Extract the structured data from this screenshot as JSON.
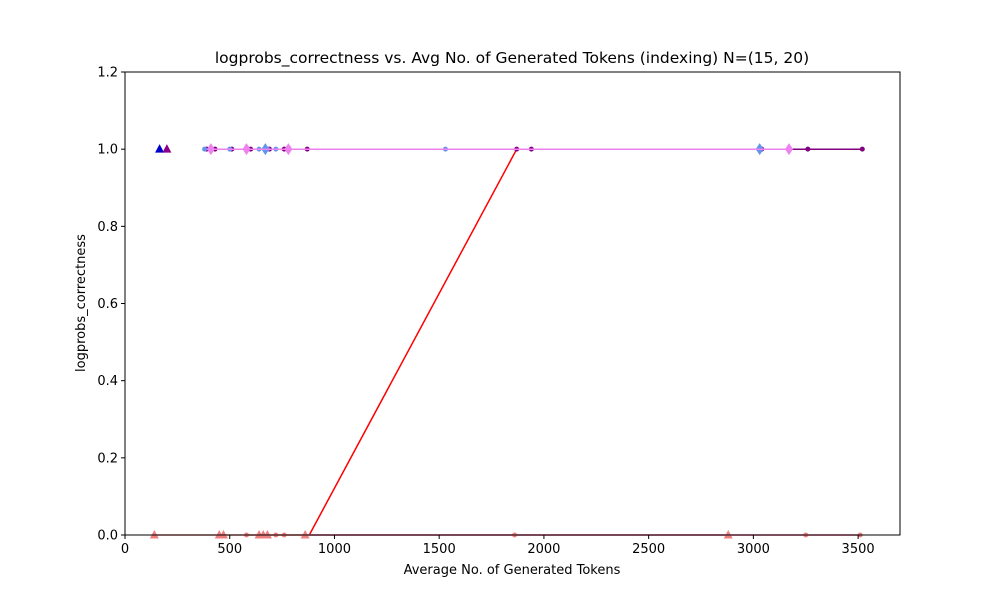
{
  "chart_data": {
    "type": "line",
    "title": "logprobs_correctness vs. Avg No. of Generated Tokens (indexing) N=(15, 20)",
    "xlabel": "Average No. of Generated Tokens",
    "ylabel": "logprobs_correctness",
    "xlim": [
      0,
      3700
    ],
    "ylim": [
      0,
      1.2
    ],
    "xticks": [
      0,
      500,
      1000,
      1500,
      2000,
      2500,
      3000,
      3500
    ],
    "yticks": [
      0.0,
      0.2,
      0.4,
      0.6,
      0.8,
      1.0,
      1.2
    ],
    "xtick_labels": [
      "0",
      "500",
      "1000",
      "1500",
      "2000",
      "2500",
      "3000",
      "3500"
    ],
    "ytick_labels": [
      "0.0",
      "0.2",
      "0.4",
      "0.6",
      "0.8",
      "1.0",
      "1.2"
    ],
    "grid": false,
    "legend": "none",
    "series": [
      {
        "color": "#ff0000",
        "marker": "line",
        "x": [
          880,
          1870
        ],
        "y": [
          0,
          1
        ]
      },
      {
        "color": "#800080",
        "marker": "circle",
        "x": [
          390,
          430,
          510,
          600,
          690,
          760,
          870,
          1870,
          1940,
          3040,
          3260,
          3520
        ],
        "y": [
          1,
          1,
          1,
          1,
          1,
          1,
          1,
          1,
          1,
          1,
          1,
          1
        ]
      },
      {
        "color": "#6495ed",
        "marker": "circle",
        "x": [
          380,
          500,
          580,
          640,
          680,
          720,
          780,
          1530
        ],
        "y": [
          1,
          1,
          1,
          1,
          1,
          1,
          1,
          1
        ]
      },
      {
        "color": "#6495ed",
        "marker": "diamond",
        "x": [
          670,
          3030
        ],
        "y": [
          1,
          1
        ]
      },
      {
        "color": "#ee82ee",
        "marker": "diamond",
        "x": [
          410,
          580,
          780,
          3170
        ],
        "y": [
          1,
          1,
          1,
          1
        ]
      },
      {
        "color": "#0000cd",
        "marker": "triangle",
        "x": [
          165
        ],
        "y": [
          1
        ]
      },
      {
        "color": "#8b008b",
        "marker": "triangle",
        "x": [
          200
        ],
        "y": [
          1
        ]
      },
      {
        "color": "#f08080",
        "marker": "triangle",
        "x": [
          140,
          450,
          470,
          640,
          660,
          680,
          860,
          2880
        ],
        "y": [
          0,
          0,
          0,
          0,
          0,
          0,
          0,
          0
        ]
      },
      {
        "color": "#ee82ee",
        "marker": "line",
        "x": [
          880,
          3520
        ],
        "y": [
          0,
          0
        ]
      },
      {
        "color": "#f08080",
        "marker": "circle",
        "x": [
          580,
          720,
          760,
          1860,
          3250,
          3510
        ],
        "y": [
          0,
          0,
          0,
          0,
          0,
          0
        ]
      }
    ]
  }
}
